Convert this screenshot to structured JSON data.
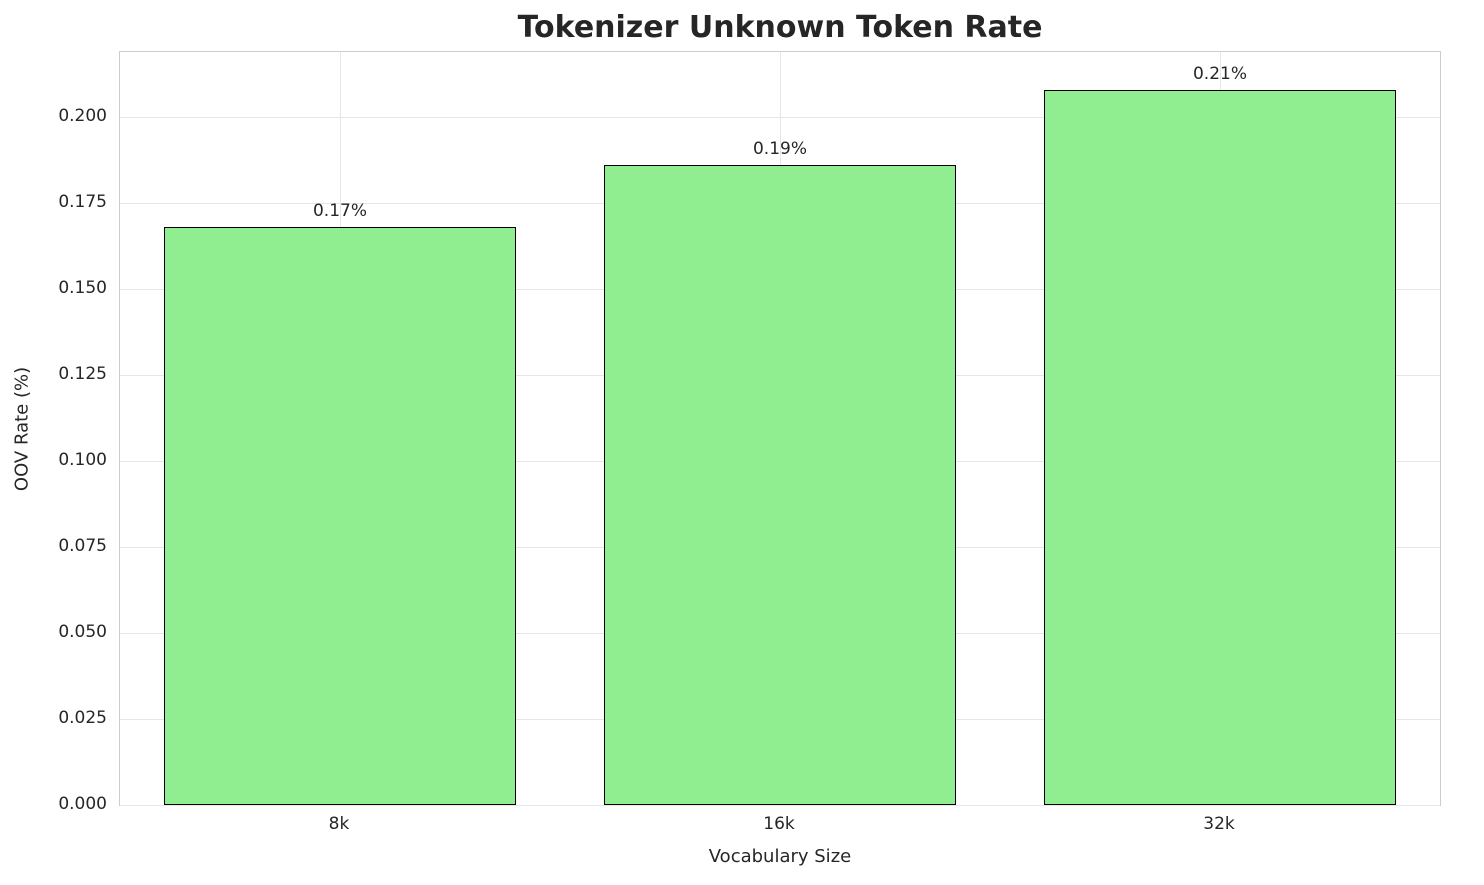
{
  "chart_data": {
    "type": "bar",
    "title": "Tokenizer Unknown Token Rate",
    "xlabel": "Vocabulary Size",
    "ylabel": "OOV Rate (%)",
    "categories": [
      "8k",
      "16k",
      "32k"
    ],
    "values": [
      0.168,
      0.186,
      0.208
    ],
    "bar_labels": [
      "0.17%",
      "0.19%",
      "0.21%"
    ],
    "ylim": [
      0,
      0.219
    ],
    "yticks": [
      0,
      0.025,
      0.05,
      0.075,
      0.1,
      0.125,
      0.15,
      0.175,
      0.2
    ],
    "ytick_labels": [
      "0.000",
      "0.025",
      "0.050",
      "0.075",
      "0.100",
      "0.125",
      "0.150",
      "0.175",
      "0.200"
    ],
    "grid": true,
    "legend_position": "none",
    "bar_width_fraction": 0.8,
    "colors": {
      "bar_fill": "#90EE90",
      "bar_edge": "#000000",
      "grid": "#e6e6e6",
      "spine": "#cccccc",
      "text": "#262626"
    }
  }
}
